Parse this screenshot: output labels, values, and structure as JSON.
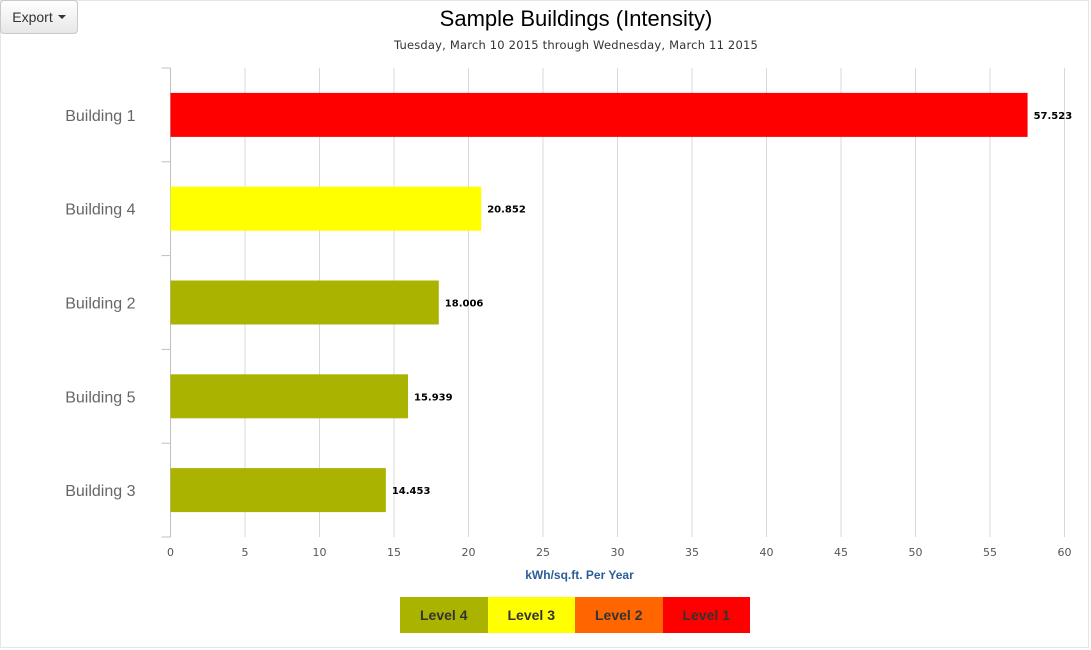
{
  "export_button": {
    "label": "Export",
    "icon": "caret-down-icon"
  },
  "chart_data": {
    "type": "bar",
    "orientation": "horizontal",
    "title": "Sample Buildings (Intensity)",
    "subtitle": "Tuesday, March 10 2015 through Wednesday, March 11 2015",
    "xlabel": "kWh/sq.ft. Per Year",
    "ylabel": "",
    "xlim": [
      0,
      60
    ],
    "xticks": [
      "0",
      "5",
      "10",
      "15",
      "20",
      "25",
      "30",
      "35",
      "40",
      "45",
      "50",
      "55",
      "60"
    ],
    "grid": "vertical",
    "categories": [
      "Building 1",
      "Building 4",
      "Building 2",
      "Building 5",
      "Building 3"
    ],
    "values": [
      57.523,
      20.852,
      18.006,
      15.939,
      14.453
    ],
    "data_labels": [
      "57.523",
      "20.852",
      "18.006",
      "15.939",
      "14.453"
    ],
    "bar_colors": [
      "#ff0000",
      "#ffff00",
      "#aab400",
      "#aab400",
      "#aab400"
    ],
    "legend_position": "bottom-center",
    "legend": [
      {
        "label": "Level 4",
        "color": "#aab400"
      },
      {
        "label": "Level 3",
        "color": "#ffff00"
      },
      {
        "label": "Level 2",
        "color": "#ff6600"
      },
      {
        "label": "Level 1",
        "color": "#ff0000"
      }
    ]
  }
}
